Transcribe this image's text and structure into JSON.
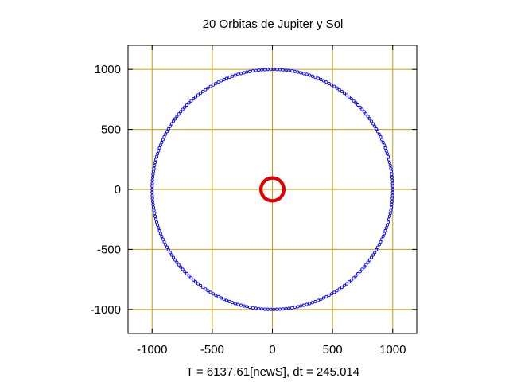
{
  "chart_data": {
    "type": "scatter",
    "title": "20 Orbitas de Jupiter y Sol",
    "xlabel": "T = 6137.61[newS], dt = 245.014",
    "ylabel": "",
    "xlim": [
      -1200,
      1200
    ],
    "ylim": [
      -1200,
      1200
    ],
    "x_ticks": [
      -1000,
      -500,
      0,
      500,
      1000
    ],
    "y_ticks": [
      -1000,
      -500,
      0,
      500,
      1000
    ],
    "x_tick_labels": [
      "-1000",
      "-500",
      "0",
      "500",
      "1000"
    ],
    "y_tick_labels": [
      "-1000",
      "-500",
      "0",
      "500",
      "1000"
    ],
    "grid": true,
    "grid_color": "#c8a000",
    "series": [
      {
        "marker": "circle",
        "color": "#0000ff",
        "orbit_radius": 1000,
        "center": [
          0,
          0
        ],
        "point_count": 250
      },
      {
        "marker": "circle",
        "color": "#e00000",
        "orbit_radius": 95,
        "center": [
          0,
          0
        ],
        "point_count": 120
      }
    ]
  }
}
